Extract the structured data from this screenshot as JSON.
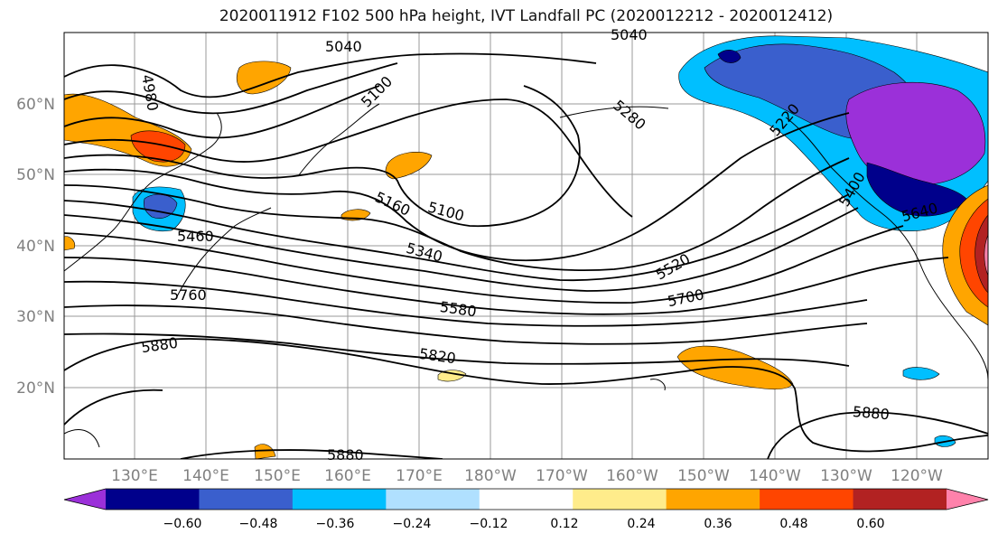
{
  "title": "2020011912 F102 500 hPa height, IVT Landfall PC (2020012212 - 2020012412)",
  "lat_labels": [
    "60°N",
    "50°N",
    "40°N",
    "30°N",
    "20°N"
  ],
  "lon_labels": [
    "130°E",
    "140°E",
    "150°E",
    "160°E",
    "170°E",
    "180°W",
    "170°W",
    "160°W",
    "150°W",
    "140°W",
    "130°W",
    "120°W"
  ],
  "contour_labels": [
    "5040",
    "5040",
    "4980",
    "5100",
    "5280",
    "5220",
    "5100",
    "5160",
    "5460",
    "5340",
    "5520",
    "5400",
    "5640",
    "5760",
    "5580",
    "5700",
    "5880",
    "5820",
    "5880",
    "5880"
  ],
  "colorbar": {
    "colors": [
      "#9b30d9",
      "#00008b",
      "#3a5fcd",
      "#00bfff",
      "#b0e0ff",
      "#ffffff",
      "#ffec8b",
      "#ffa500",
      "#ff4500",
      "#b22222",
      "#ff82ab"
    ],
    "tick_labels": [
      "−0.60",
      "−0.48",
      "−0.36",
      "−0.24",
      "−0.12",
      "0.12",
      "0.24",
      "0.36",
      "0.48",
      "0.60"
    ]
  },
  "colors": {
    "contour": "#000000",
    "grid": "#999999",
    "tick_text": "#808080"
  }
}
